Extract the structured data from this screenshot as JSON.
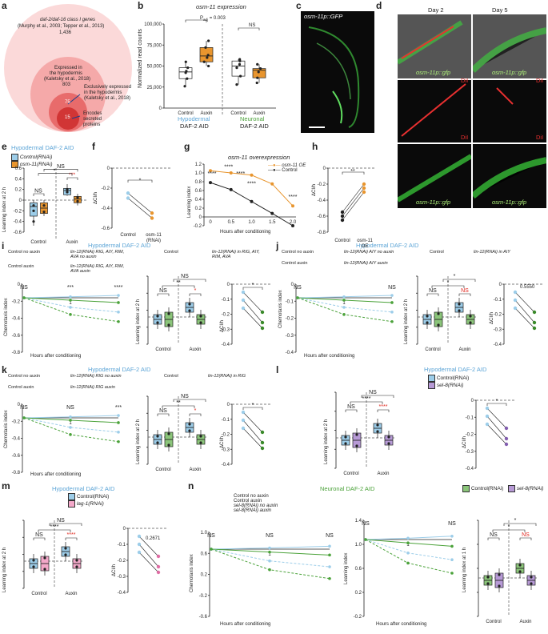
{
  "panel_labels": {
    "a": "a",
    "b": "b",
    "c": "c",
    "d": "d",
    "e": "e",
    "f": "f",
    "g": "g",
    "h": "h",
    "i": "i",
    "j": "j",
    "k": "k",
    "l": "l",
    "m": "m",
    "n": "n"
  },
  "colors": {
    "blue": "#5ba4d6",
    "orange": "#e8952e",
    "green": "#4ba23a",
    "purple": "#8460b0",
    "pink": "#e06fa6",
    "red": "#e0241b",
    "light_blue": "#9ccde9",
    "light_green": "#8bc57a",
    "light_purple": "#b79ad6",
    "light_pink": "#f3a8c9",
    "circle_outer": "#fbd9d9",
    "circle_mid": "#f5a9a9",
    "circle_inner": "#e86b6b",
    "circle_core": "#d13535"
  },
  "panel_a": {
    "outer": {
      "line1": "daf-2/daf-16 class I genes",
      "line2": "(Murphy et al., 2003; Tepper et al., 2013)",
      "count": "1,436"
    },
    "mid": {
      "line1": "Expressed in",
      "line2": "the hypodermis",
      "line3": "(Kaletsky et al., 2018)",
      "count": "803"
    },
    "inner": {
      "count": "75",
      "line1": "Exclusively expressed",
      "line2": "in the hypodermis",
      "line3": "(Kaletsky et al., 2018)"
    },
    "core": {
      "count": "15",
      "line1": "Encodes",
      "line2": "secreted",
      "line3": "proteins"
    }
  },
  "panel_b": {
    "title": "osm-11 expression",
    "ylabel": "Normalized read counts",
    "yticks": [
      "0",
      "25,000",
      "50,000",
      "75,000",
      "100,000"
    ],
    "p_label": "P",
    "p_sub": "adj",
    "p_value": "= 0.003",
    "ns": "NS",
    "x": [
      "Control",
      "Auxin",
      "Control",
      "Auxin"
    ],
    "group1_line1": "Hypodermal",
    "group1_line2": "DAF-2 AID",
    "group2_line1": "Neuronal",
    "group2_line2": "DAF-2 AID"
  },
  "panel_c": {
    "label": "osm-11p::GFP"
  },
  "panel_d": {
    "day2": "Day 2",
    "day5": "Day 5",
    "gfp": "osm-11p::gfp",
    "dil": "DiI"
  },
  "panel_e": {
    "title": "Hypodermal DAF-2 AID",
    "legend": [
      "Control(RNAi)",
      "osm-11(RNAi)"
    ],
    "ylabel": "Learning index at 2 h",
    "yticks": [
      "0.6",
      "0.4",
      "0.2",
      "0",
      "-0.2",
      "-0.4",
      "-0.6"
    ],
    "x": [
      "Control",
      "Auxin"
    ],
    "sig": [
      "NS",
      "***",
      "*",
      "NS"
    ]
  },
  "panel_f": {
    "ylabel": "ΔCI/h",
    "yticks": [
      "0",
      "-0.2",
      "-0.4",
      "-0.6"
    ],
    "x": [
      "Control",
      "osm-11",
      "(RNAi)"
    ],
    "sig": "*"
  },
  "panel_g": {
    "title": "osm-11 overexpression",
    "ylabel": "Learning index",
    "xlabel": "Hours after conditioning",
    "xticks": [
      "0",
      "0.5",
      "1.0",
      "1.5",
      "2.0"
    ],
    "yticks": [
      "1.2",
      "1.0",
      "0.8",
      "0.6",
      "0.4",
      "0.2",
      "0",
      "-0.2"
    ],
    "legend": [
      "osm-11 OE",
      "Control"
    ],
    "sig": [
      "****",
      "****",
      "****",
      "****",
      "****"
    ]
  },
  "panel_h": {
    "ylabel": "ΔCI/h",
    "yticks": [
      "0",
      "-0.2",
      "-0.4",
      "-0.6",
      "-0.8"
    ],
    "x": [
      "Control",
      "osm-11",
      "OE"
    ],
    "sig": "**"
  },
  "panel_i": {
    "title": "Hypodermal DAF-2 AID",
    "legend": [
      "Control no auxin",
      "lin-12(RNAi) RIG, AIY, RIM, AVA no auxin",
      "Control auxin",
      "lin-12(RNAi) RIG, AIY, RIM, AVA auxin"
    ],
    "legend_box": [
      "Control",
      "lin-12(RNAi) in RIG, AIY, RIM, AVA"
    ],
    "ylabel": "Chemotaxis index",
    "ylabel2": "Learning index at 2 h",
    "xlabel": "Hours after conditioning",
    "ylabel3": "ΔCI/h",
    "sig": [
      "NS",
      "***",
      "****",
      "NS",
      "**",
      "NS",
      "NS",
      "*",
      "*"
    ],
    "x": [
      "Control",
      "Auxin"
    ],
    "x3": [
      "Control",
      "lin-12 in",
      "RIG, AIY,",
      "RIM, AVA"
    ]
  },
  "panel_j": {
    "title": "Hypodermal DAF-2 AID",
    "legend": [
      "Control no auxin",
      "lin-12(RNAi) AIY no auxin",
      "Control auxin",
      "lin-12(RNAi) AIY auxin"
    ],
    "legend_box": [
      "Control",
      "lin-12(RNAi) in AIY"
    ],
    "ylabel": "Chemotaxis index",
    "ylabel2": "Learning index at 2 h",
    "xlabel": "Hours after conditioning",
    "ylabel3": "ΔCI/h",
    "p_value": "0.5550",
    "sig": [
      "NS",
      "NS",
      "*",
      "*",
      "NS"
    ],
    "x": [
      "Control",
      "Auxin"
    ],
    "x3": [
      "Control",
      "lin-12 in",
      "AIY"
    ]
  },
  "panel_k": {
    "title": "Hypodermal DAF-2 AID",
    "legend": [
      "Control no auxin",
      "lin-12(RNAi) RIG no auxin",
      "Control auxin",
      "lin-12(RNAi) RIG auxin"
    ],
    "legend_box": [
      "Control",
      "lin-12(RNAi) in RIG"
    ],
    "ylabel": "Chemotaxis index",
    "ylabel2": "Learning index at 2 h",
    "xlabel": "Hours after conditioning",
    "ylabel3": "ΔCI/h",
    "sig": [
      "NS",
      "NS",
      "***",
      "NS",
      "**",
      "NS",
      "*",
      "*"
    ],
    "x": [
      "Control",
      "Auxin"
    ],
    "x3": [
      "Control",
      "lin-12",
      "in RIG"
    ]
  },
  "panel_l": {
    "title": "Hypodermal DAF-2 AID",
    "legend": [
      "Control(RNAi)",
      "sel-8(RNAi)"
    ],
    "ylabel": "Learning index at 2 h",
    "ylabel2": "ΔCI/h",
    "sig": [
      "NS",
      "****",
      "NS",
      "****",
      "*"
    ],
    "x": [
      "Control",
      "Auxin"
    ],
    "x2": [
      "Control",
      "sel-8",
      "(RNAi)"
    ]
  },
  "panel_m": {
    "title": "Hypodermal DAF-2 AID",
    "legend": [
      "Control(RNAi)",
      "lag-1(RNAi)"
    ],
    "ylabel": "Learning index at 2 h",
    "ylabel2": "ΔCI/h",
    "p_value": "0.2671",
    "sig": [
      "NS",
      "****",
      "NS",
      "****"
    ],
    "x": [
      "Control",
      "Auxin"
    ],
    "x2": [
      "Control",
      "lag-1",
      "(RNAi)"
    ]
  },
  "panel_n": {
    "title": "Neuronal DAF-2 AID",
    "legend": [
      "Control no auxin",
      "Control auxin",
      "sel-8(RNAi) no auxin",
      "sel-8(RNAi) auxin"
    ],
    "legend_box": [
      "Control(RNAi)",
      "sel-8(RNAi)"
    ],
    "ylabel": "Chemotaxis index",
    "ylabel2": "Learning index",
    "ylabel3": "Learning index at 1 h",
    "xlabel": "Hours after conditioning",
    "sig": [
      "NS",
      "NS",
      "NS",
      "NS",
      "NS",
      "NS",
      "*",
      "*",
      "NS",
      "NS"
    ],
    "x": [
      "Control",
      "Auxin"
    ]
  },
  "chart_data": [
    {
      "panel": "b",
      "type": "box",
      "categories": [
        "Hypodermal Control",
        "Hypodermal Auxin",
        "Neuronal Control",
        "Neuronal Auxin"
      ],
      "medians": [
        43000,
        62000,
        50000,
        45000
      ],
      "points": [
        [
          26000,
          35000,
          42000,
          44000,
          48000,
          55000
        ],
        [
          50000,
          55000,
          60000,
          63000,
          72000,
          80000
        ],
        [
          28000,
          38000,
          48000,
          52000,
          56000,
          58000
        ],
        [
          30000,
          36000,
          43000,
          47000,
          52000
        ]
      ],
      "ylim": [
        0,
        100000
      ]
    },
    {
      "panel": "e",
      "type": "box",
      "categories": [
        "Control",
        "Auxin"
      ],
      "series": [
        {
          "name": "Control(RNAi)",
          "medians": [
            -0.12,
            0.18
          ]
        },
        {
          "name": "osm-11(RNAi)",
          "medians": [
            -0.15,
            0.02
          ]
        }
      ],
      "ylim": [
        -0.6,
        0.6
      ]
    },
    {
      "panel": "f",
      "type": "paired",
      "categories": [
        "Control",
        "osm-11 (RNAi)"
      ],
      "pairs": [
        [
          -0.25,
          -0.45
        ],
        [
          -0.3,
          -0.5
        ]
      ],
      "ylim": [
        -0.6,
        0
      ]
    },
    {
      "panel": "g",
      "type": "line",
      "x": [
        0,
        0.5,
        1.0,
        1.5,
        2.0
      ],
      "series": [
        {
          "name": "osm-11 OE",
          "values": [
            1.05,
            1.0,
            0.95,
            0.75,
            0.25
          ]
        },
        {
          "name": "Control",
          "values": [
            0.78,
            0.62,
            0.35,
            0.08,
            -0.2
          ]
        }
      ],
      "ylim": [
        -0.2,
        1.2
      ]
    },
    {
      "panel": "h",
      "type": "paired",
      "categories": [
        "Control",
        "osm-11 OE"
      ],
      "pairs": [
        [
          -0.55,
          -0.2
        ],
        [
          -0.6,
          -0.25
        ],
        [
          -0.65,
          -0.3
        ]
      ],
      "ylim": [
        -0.8,
        0
      ]
    }
  ]
}
